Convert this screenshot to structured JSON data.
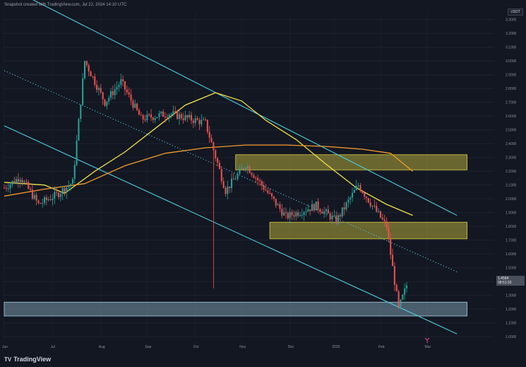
{
  "header": {
    "caption": "Snapshot created with TradingView.com, Jul 22, 2024 14:10 UTC"
  },
  "axis": {
    "currency_label": "USDT"
  },
  "price_tag": {
    "value": "1.4564",
    "countdown": "08:51:33"
  },
  "branding": {
    "name": "TradingView",
    "logo": "TV"
  },
  "colors": {
    "background": "#131722",
    "up": "#26a69a",
    "down": "#ef5350",
    "channel": "#4dd0e1",
    "ma_short": "#f0e04a",
    "ma_long": "#f29b2b",
    "zone_resistance": "#bfb53d",
    "zone_support": "#8fb3c7"
  },
  "chart_data": {
    "type": "candlestick",
    "title": "",
    "x_tick_labels": [
      "Jun",
      "Jul",
      "Aug",
      "Sep",
      "Oct",
      "Nov",
      "Dec",
      "2025",
      "Feb",
      "Mar"
    ],
    "y_ticks": [
      3.3,
      3.2,
      3.1,
      3.0,
      2.9,
      2.8,
      2.7,
      2.6,
      2.5,
      2.4,
      2.3,
      2.2,
      2.1,
      2.0,
      1.9,
      1.8,
      1.7,
      1.6,
      1.5,
      1.4,
      1.3,
      1.2,
      1.1,
      1.0
    ],
    "ylim": [
      0.98,
      3.35
    ],
    "n_bars": 200,
    "y_tick_labels": [
      "3.3000",
      "3.2000",
      "3.1000",
      "3.0000",
      "2.9000",
      "2.8000",
      "2.7000",
      "2.6000",
      "2.5000",
      "2.4000",
      "2.3000",
      "2.2000",
      "2.1000",
      "2.0000",
      "1.9000",
      "1.8000",
      "1.7000",
      "1.6000",
      "1.5000",
      "1.4000",
      "1.3000",
      "1.2000",
      "1.1000",
      "1.0000"
    ],
    "x_tick_bars": [
      0,
      24,
      48,
      71,
      95,
      118,
      142,
      164,
      187,
      210
    ],
    "price_path": [
      [
        0,
        2.08
      ],
      [
        8,
        2.16
      ],
      [
        17,
        1.96
      ],
      [
        26,
        2.03
      ],
      [
        34,
        2.12
      ],
      [
        40,
        3.0
      ],
      [
        50,
        2.7
      ],
      [
        58,
        2.85
      ],
      [
        68,
        2.58
      ],
      [
        82,
        2.62
      ],
      [
        100,
        2.55
      ],
      [
        110,
        2.06
      ],
      [
        120,
        2.25
      ],
      [
        128,
        2.1
      ],
      [
        140,
        1.87
      ],
      [
        155,
        1.95
      ],
      [
        165,
        1.84
      ],
      [
        176,
        2.1
      ],
      [
        190,
        1.8
      ],
      [
        196,
        1.2
      ],
      [
        202,
        1.46
      ]
    ],
    "annotations": [
      {
        "bar": 104,
        "low": 1.35,
        "note": "long lower wick"
      },
      {
        "bar": 196,
        "low": 1.2,
        "note": "swing low"
      }
    ],
    "channel_lines": [
      {
        "name": "upper",
        "from": [
          0,
          3.55
        ],
        "to": [
          225,
          1.88
        ]
      },
      {
        "name": "middle",
        "from": [
          0,
          2.93
        ],
        "to": [
          225,
          1.47
        ]
      },
      {
        "name": "lower",
        "from": [
          0,
          2.53
        ],
        "to": [
          225,
          1.02
        ]
      }
    ],
    "moving_averages": [
      {
        "name": "short",
        "points": [
          [
            0,
            2.12
          ],
          [
            20,
            2.1
          ],
          [
            30,
            2.04
          ],
          [
            45,
            2.2
          ],
          [
            60,
            2.34
          ],
          [
            75,
            2.51
          ],
          [
            90,
            2.68
          ],
          [
            105,
            2.77
          ],
          [
            118,
            2.71
          ],
          [
            130,
            2.57
          ],
          [
            145,
            2.43
          ],
          [
            160,
            2.25
          ],
          [
            175,
            2.08
          ],
          [
            190,
            1.96
          ],
          [
            203,
            1.88
          ]
        ]
      },
      {
        "name": "long",
        "points": [
          [
            0,
            2.02
          ],
          [
            20,
            2.07
          ],
          [
            40,
            2.11
          ],
          [
            60,
            2.24
          ],
          [
            80,
            2.33
          ],
          [
            100,
            2.37
          ],
          [
            120,
            2.39
          ],
          [
            140,
            2.39
          ],
          [
            160,
            2.38
          ],
          [
            178,
            2.36
          ],
          [
            192,
            2.33
          ],
          [
            203,
            2.2
          ]
        ]
      }
    ],
    "zones": [
      {
        "name": "resistance-upper",
        "bars": [
          115,
          230
        ],
        "y": [
          2.21,
          2.32
        ]
      },
      {
        "name": "resistance-lower",
        "bars": [
          132,
          230
        ],
        "y": [
          1.71,
          1.83
        ]
      },
      {
        "name": "support",
        "bars": [
          0,
          230
        ],
        "y": [
          1.15,
          1.25
        ]
      }
    ]
  }
}
